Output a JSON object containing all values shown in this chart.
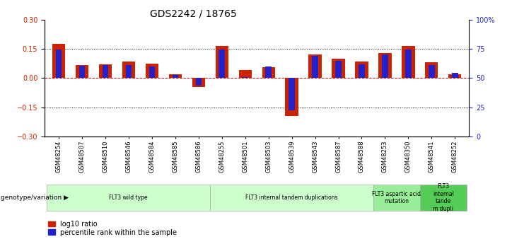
{
  "title": "GDS2242 / 18765",
  "samples": [
    "GSM48254",
    "GSM48507",
    "GSM48510",
    "GSM48546",
    "GSM48584",
    "GSM48585",
    "GSM48586",
    "GSM48255",
    "GSM48501",
    "GSM48503",
    "GSM48539",
    "GSM48543",
    "GSM48587",
    "GSM48588",
    "GSM48253",
    "GSM48350",
    "GSM48541",
    "GSM48252"
  ],
  "log10_ratio": [
    0.175,
    0.065,
    0.07,
    0.085,
    0.075,
    0.02,
    -0.045,
    0.165,
    0.04,
    0.055,
    -0.195,
    0.12,
    0.1,
    0.085,
    0.13,
    0.165,
    0.08,
    0.02
  ],
  "percentile_rank": [
    0.148,
    0.062,
    0.065,
    0.065,
    0.058,
    0.015,
    -0.04,
    0.148,
    0.005,
    0.06,
    -0.165,
    0.115,
    0.09,
    0.07,
    0.12,
    0.145,
    0.065,
    0.025
  ],
  "bar_color_red": "#cc2200",
  "bar_color_blue": "#2222cc",
  "zero_line_color": "#cc0000",
  "dotted_line_color": "#000000",
  "ylim": [
    -0.3,
    0.3
  ],
  "yticks": [
    -0.3,
    -0.15,
    0.0,
    0.15,
    0.3
  ],
  "y2ticks": [
    0,
    25,
    50,
    75,
    100
  ],
  "y2labels": [
    "0",
    "25",
    "50",
    "75",
    "100%"
  ],
  "groups": [
    {
      "label": "FLT3 wild type",
      "start": 0,
      "end": 7,
      "color": "#ccffcc"
    },
    {
      "label": "FLT3 internal tandem duplications",
      "start": 7,
      "end": 14,
      "color": "#ccffcc"
    },
    {
      "label": "FLT3 aspartic acid\nmutation",
      "start": 14,
      "end": 16,
      "color": "#99ee99"
    },
    {
      "label": "FLT3\ninternal\ntande\nm dupli",
      "start": 16,
      "end": 18,
      "color": "#55cc55"
    }
  ],
  "group_label_prefix": "genotype/variation",
  "legend_red": "log10 ratio",
  "legend_blue": "percentile rank within the sample",
  "background_color": "#ffffff",
  "title_fontsize": 10,
  "tick_fontsize": 6.5,
  "axis_label_color_left": "#cc2200",
  "axis_label_color_right": "#2222cc"
}
